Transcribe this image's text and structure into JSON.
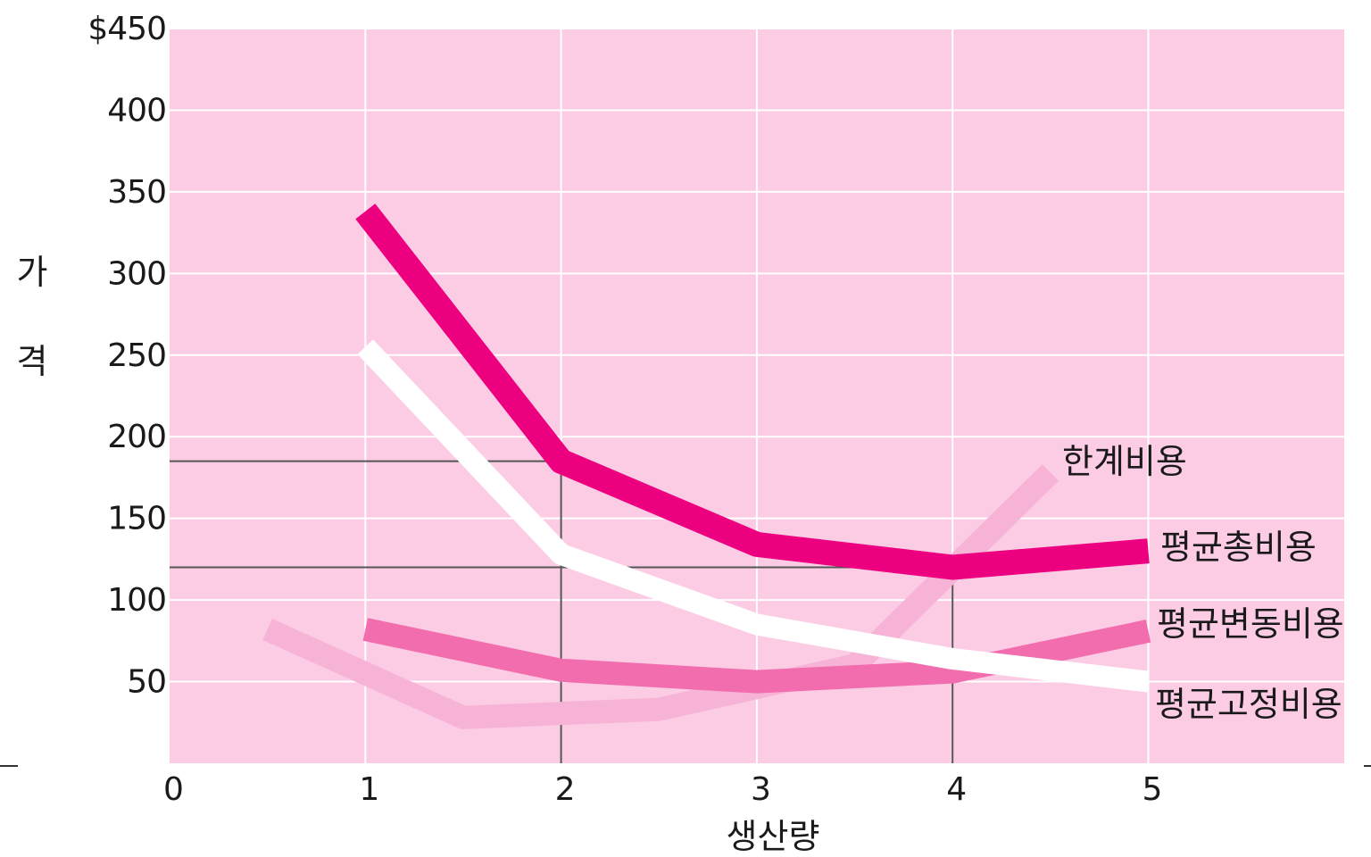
{
  "chart_data": {
    "type": "line",
    "title": "",
    "xlabel": "생산량",
    "ylabel": [
      "가",
      "격"
    ],
    "xlim": [
      0,
      6
    ],
    "ylim": [
      0,
      450
    ],
    "x_ticks": [
      "0",
      "1",
      "2",
      "3",
      "4",
      "5"
    ],
    "y_ticks": [
      "50",
      "100",
      "150",
      "200",
      "250",
      "300",
      "350",
      "400",
      "$450"
    ],
    "grid": true,
    "colors": {
      "background": "#fccbe4",
      "grid": "#ffffff",
      "reference": "#555555"
    },
    "series": [
      {
        "name": "한계비용",
        "color": "#f7b3d6",
        "width": 26,
        "x": [
          0.5,
          1.5,
          2.5,
          3.5,
          4.5
        ],
        "y": [
          82,
          28,
          33,
          60,
          178
        ]
      },
      {
        "name": "평균총비용",
        "color": "#ec0080",
        "width": 28,
        "x": [
          1,
          2,
          3,
          4,
          5
        ],
        "y": [
          338,
          185,
          134,
          120,
          130
        ]
      },
      {
        "name": "평균변동비용",
        "color": "#f26dae",
        "width": 26,
        "x": [
          1,
          2,
          3,
          4,
          5
        ],
        "y": [
          82,
          57,
          50,
          56,
          81
        ]
      },
      {
        "name": "평균고정비용",
        "color": "#ffffff",
        "width": 24,
        "x": [
          1,
          2,
          3,
          4,
          5
        ],
        "y": [
          255,
          128,
          85,
          64,
          50
        ]
      }
    ],
    "reference_lines": [
      {
        "type": "h",
        "y": 185,
        "x_to": 2
      },
      {
        "type": "h",
        "y": 120,
        "x_to": 4
      },
      {
        "type": "v",
        "x": 2,
        "y_to": 185
      },
      {
        "type": "v",
        "x": 4,
        "y_to": 120
      }
    ]
  }
}
